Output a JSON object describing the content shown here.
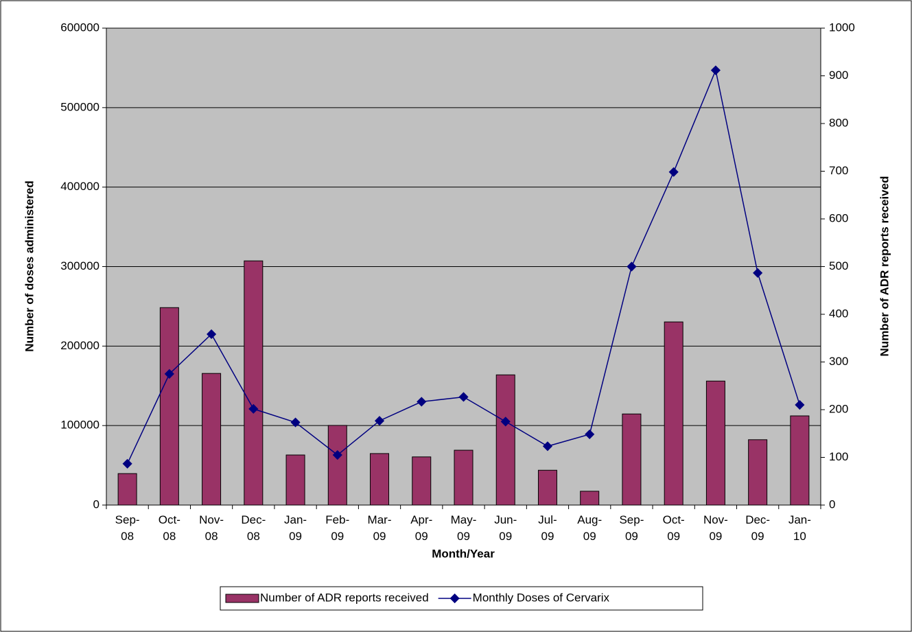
{
  "chart_data": {
    "type": "bar-line",
    "x_label": "Month/Year",
    "y_label": "Number of doses administered",
    "y2_label": "Number of ADR reports received",
    "categories": [
      "Sep-08",
      "Oct-08",
      "Nov-08",
      "Dec-08",
      "Jan-09",
      "Feb-09",
      "Mar-09",
      "Apr-09",
      "May-09",
      "Jun-09",
      "Jul-09",
      "Aug-09",
      "Sep-09",
      "Oct-09",
      "Nov-09",
      "Dec-09",
      "Jan-10"
    ],
    "series": [
      {
        "name": "Number of ADR reports received",
        "type": "bar",
        "axis": "y2",
        "color": "#993366",
        "values": [
          66,
          414,
          276,
          512,
          105,
          167,
          108,
          101,
          115,
          273,
          73,
          29,
          191,
          384,
          260,
          137,
          187
        ]
      },
      {
        "name": "Monthly Doses of Cervarix",
        "type": "line",
        "axis": "y",
        "color": "#000080",
        "values": [
          52000,
          165000,
          215000,
          121000,
          104000,
          63000,
          106000,
          130000,
          136000,
          105000,
          74000,
          89000,
          300000,
          419000,
          547000,
          292000,
          126000
        ]
      }
    ],
    "ylim": [
      0,
      600000
    ],
    "yticks": [
      0,
      100000,
      200000,
      300000,
      400000,
      500000,
      600000
    ],
    "y2lim": [
      0,
      1000
    ],
    "y2ticks": [
      0,
      100,
      200,
      300,
      400,
      500,
      600,
      700,
      800,
      900,
      1000
    ],
    "grid": true,
    "legend": "bottom",
    "plot_background": "#c0c0c0"
  }
}
